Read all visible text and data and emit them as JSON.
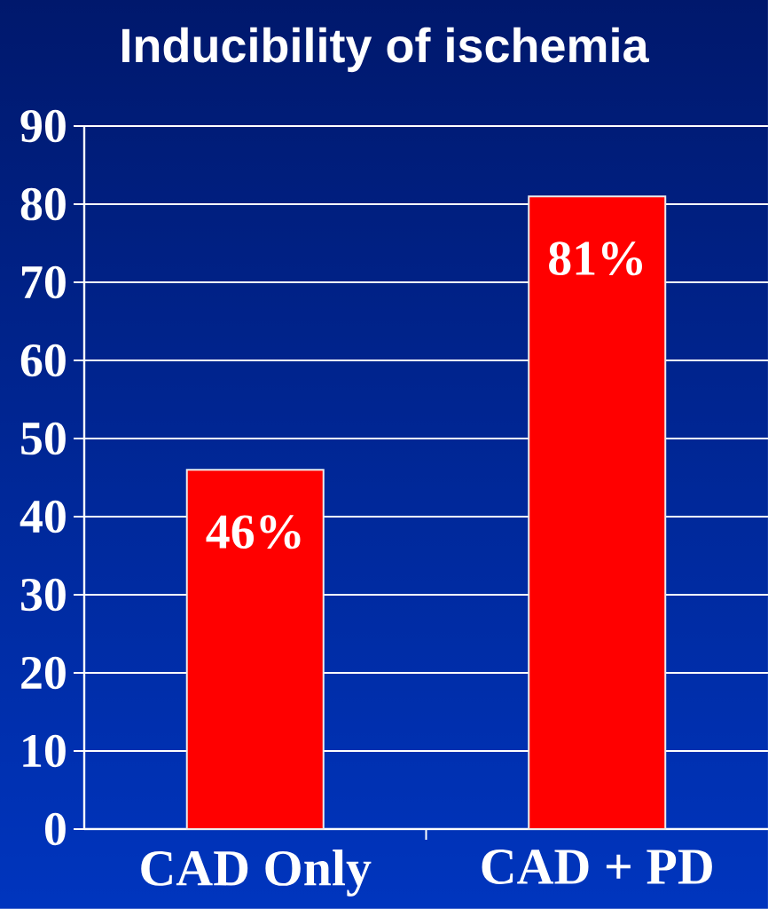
{
  "chart_data": {
    "type": "bar",
    "title": "Inducibility of ischemia",
    "categories": [
      "CAD Only",
      "CAD + PD"
    ],
    "values": [
      46,
      81
    ],
    "color": "#ff0000",
    "value_labels": [
      "46%",
      "81%"
    ],
    "ylim": [
      0,
      90
    ],
    "yticks": [
      0,
      10,
      20,
      30,
      40,
      50,
      60,
      70,
      80,
      90
    ],
    "grid": "y"
  }
}
